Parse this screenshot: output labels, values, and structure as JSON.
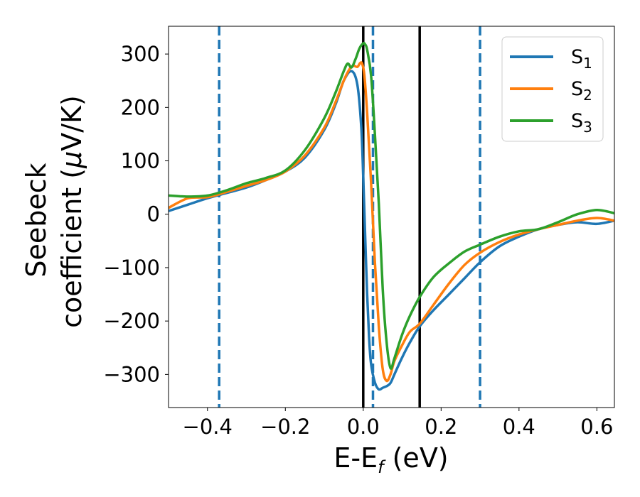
{
  "chart_data": {
    "type": "line",
    "xlabel": "E-E",
    "xlabel_sub": "f",
    "xlabel_unit": " (eV)",
    "ylabel_line1": "Seebeck",
    "ylabel_line2": "coefficient  (",
    "ylabel_mu": "μ",
    "ylabel_unit": "V/K)",
    "xlim": [
      -0.5,
      0.645
    ],
    "ylim": [
      -362,
      352
    ],
    "xticks": [
      -0.4,
      -0.2,
      0.0,
      0.2,
      0.4,
      0.6
    ],
    "xtick_labels": [
      "−0.4",
      "−0.2",
      "0.0",
      "0.2",
      "0.4",
      "0.6"
    ],
    "yticks": [
      300,
      200,
      100,
      0,
      -100,
      -200,
      -300
    ],
    "ytick_labels": [
      "300",
      "200",
      "100",
      "0",
      "−100",
      "−200",
      "−300"
    ],
    "legend_position": "top-right",
    "grid": false,
    "vlines": [
      {
        "x": -0.37,
        "style": "dashed",
        "color": "#1f77b4"
      },
      {
        "x": 0.0,
        "style": "solid",
        "color": "#000000"
      },
      {
        "x": 0.025,
        "style": "dashed",
        "color": "#1f77b4"
      },
      {
        "x": 0.145,
        "style": "solid",
        "color": "#000000"
      },
      {
        "x": 0.3,
        "style": "dashed",
        "color": "#1f77b4"
      }
    ],
    "series": [
      {
        "name": "S",
        "sub": "1",
        "color": "#1f77b4",
        "x": [
          -0.5,
          -0.45,
          -0.4,
          -0.35,
          -0.3,
          -0.25,
          -0.2,
          -0.15,
          -0.1,
          -0.07,
          -0.05,
          -0.03,
          -0.015,
          -0.005,
          0.0,
          0.005,
          0.01,
          0.015,
          0.02,
          0.03,
          0.04,
          0.05,
          0.06,
          0.07,
          0.08,
          0.1,
          0.12,
          0.145,
          0.18,
          0.22,
          0.26,
          0.3,
          0.35,
          0.4,
          0.45,
          0.5,
          0.55,
          0.6,
          0.645
        ],
        "y": [
          6,
          18,
          30,
          40,
          50,
          64,
          80,
          106,
          158,
          208,
          250,
          268,
          242,
          162,
          70,
          -40,
          -150,
          -230,
          -280,
          -315,
          -328,
          -325,
          -322,
          -316,
          -300,
          -268,
          -240,
          -210,
          -180,
          -150,
          -120,
          -90,
          -60,
          -42,
          -28,
          -20,
          -15,
          -18,
          -12
        ]
      },
      {
        "name": "S",
        "sub": "2",
        "color": "#ff7f0e",
        "x": [
          -0.5,
          -0.45,
          -0.4,
          -0.35,
          -0.3,
          -0.25,
          -0.2,
          -0.15,
          -0.1,
          -0.07,
          -0.05,
          -0.035,
          -0.025,
          -0.015,
          -0.008,
          -0.003,
          0.003,
          0.01,
          0.02,
          0.03,
          0.04,
          0.05,
          0.06,
          0.07,
          0.08,
          0.1,
          0.12,
          0.145,
          0.18,
          0.22,
          0.26,
          0.3,
          0.35,
          0.4,
          0.45,
          0.5,
          0.55,
          0.6,
          0.645
        ],
        "y": [
          12,
          30,
          32,
          42,
          53,
          64,
          80,
          110,
          162,
          212,
          250,
          272,
          278,
          276,
          283,
          282,
          260,
          190,
          60,
          -90,
          -210,
          -290,
          -312,
          -300,
          -275,
          -245,
          -220,
          -205,
          -170,
          -130,
          -95,
          -72,
          -52,
          -38,
          -28,
          -20,
          -12,
          -7,
          -12
        ]
      },
      {
        "name": "S",
        "sub": "3",
        "color": "#2ca02c",
        "x": [
          -0.5,
          -0.45,
          -0.4,
          -0.35,
          -0.3,
          -0.25,
          -0.2,
          -0.15,
          -0.1,
          -0.07,
          -0.05,
          -0.04,
          -0.03,
          -0.02,
          -0.01,
          0.0,
          0.005,
          0.01,
          0.02,
          0.03,
          0.04,
          0.05,
          0.06,
          0.07,
          0.08,
          0.1,
          0.12,
          0.145,
          0.18,
          0.22,
          0.26,
          0.3,
          0.35,
          0.4,
          0.45,
          0.5,
          0.55,
          0.6,
          0.645
        ],
        "y": [
          35,
          33,
          35,
          45,
          58,
          68,
          82,
          120,
          180,
          230,
          268,
          282,
          275,
          290,
          310,
          320,
          318,
          308,
          260,
          150,
          20,
          -140,
          -240,
          -288,
          -270,
          -225,
          -190,
          -155,
          -118,
          -92,
          -70,
          -57,
          -42,
          -32,
          -28,
          -15,
          0,
          8,
          2
        ]
      }
    ]
  }
}
